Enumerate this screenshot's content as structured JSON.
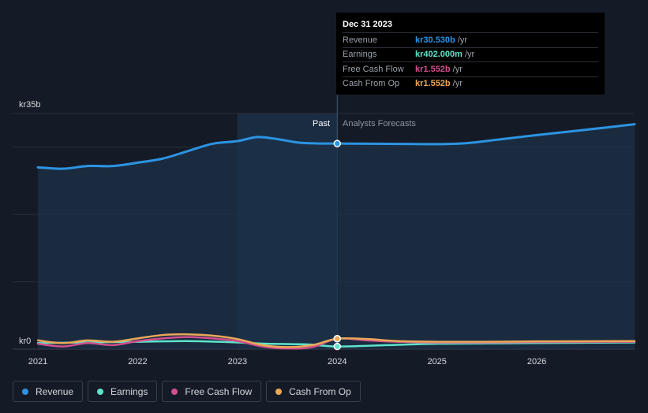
{
  "chart_data": {
    "type": "line",
    "ylabel_top": "kr35b",
    "ylabel_bottom": "kr0",
    "ylim": [
      0,
      35
    ],
    "xlim": [
      2021.0,
      2026.98
    ],
    "x_ticks": [
      "2021",
      "2022",
      "2023",
      "2024",
      "2025",
      "2026"
    ],
    "x_tick_values": [
      2021,
      2022,
      2023,
      2024,
      2025,
      2026
    ],
    "past_label": "Past",
    "forecast_label": "Analysts Forecasts",
    "past_region": [
      2023.0,
      2024.0
    ],
    "divider_x": 2024.0,
    "series": [
      {
        "name": "Revenue",
        "color": "#2c94e3",
        "points": [
          [
            2021.0,
            27.0
          ],
          [
            2021.25,
            26.8
          ],
          [
            2021.5,
            27.2
          ],
          [
            2021.75,
            27.2
          ],
          [
            2022.0,
            27.7
          ],
          [
            2022.25,
            28.3
          ],
          [
            2022.5,
            29.4
          ],
          [
            2022.75,
            30.5
          ],
          [
            2023.0,
            30.9
          ],
          [
            2023.2,
            31.5
          ],
          [
            2023.4,
            31.2
          ],
          [
            2023.6,
            30.7
          ],
          [
            2023.8,
            30.55
          ],
          [
            2024.0,
            30.53
          ],
          [
            2024.5,
            30.5
          ],
          [
            2025.0,
            30.45
          ],
          [
            2025.3,
            30.6
          ],
          [
            2025.6,
            31.1
          ],
          [
            2026.0,
            31.8
          ],
          [
            2026.5,
            32.6
          ],
          [
            2026.98,
            33.4
          ]
        ]
      },
      {
        "name": "Earnings",
        "color": "#5ee3c9",
        "points": [
          [
            2021.0,
            0.9
          ],
          [
            2021.5,
            1.0
          ],
          [
            2022.0,
            1.1
          ],
          [
            2022.5,
            1.2
          ],
          [
            2023.0,
            1.0
          ],
          [
            2023.3,
            0.8
          ],
          [
            2023.7,
            0.7
          ],
          [
            2024.0,
            0.402
          ],
          [
            2024.5,
            0.6
          ],
          [
            2025.0,
            0.8
          ],
          [
            2025.5,
            0.85
          ],
          [
            2026.0,
            0.9
          ],
          [
            2026.98,
            1.0
          ]
        ]
      },
      {
        "name": "Free Cash Flow",
        "color": "#d14f8e",
        "points": [
          [
            2021.0,
            0.8
          ],
          [
            2021.25,
            0.4
          ],
          [
            2021.5,
            0.9
          ],
          [
            2021.75,
            0.6
          ],
          [
            2022.0,
            1.2
          ],
          [
            2022.25,
            1.6
          ],
          [
            2022.5,
            1.8
          ],
          [
            2022.75,
            1.6
          ],
          [
            2023.0,
            1.2
          ],
          [
            2023.25,
            0.4
          ],
          [
            2023.5,
            0.1
          ],
          [
            2023.75,
            0.3
          ],
          [
            2024.0,
            1.552
          ],
          [
            2024.3,
            1.3
          ],
          [
            2024.6,
            1.1
          ],
          [
            2025.0,
            1.0
          ],
          [
            2025.5,
            1.0
          ],
          [
            2026.0,
            1.05
          ],
          [
            2026.98,
            1.1
          ]
        ]
      },
      {
        "name": "Cash From Op",
        "color": "#eaa857",
        "points": [
          [
            2021.0,
            1.3
          ],
          [
            2021.25,
            0.9
          ],
          [
            2021.5,
            1.3
          ],
          [
            2021.75,
            1.1
          ],
          [
            2022.0,
            1.6
          ],
          [
            2022.25,
            2.1
          ],
          [
            2022.5,
            2.2
          ],
          [
            2022.75,
            2.0
          ],
          [
            2023.0,
            1.5
          ],
          [
            2023.25,
            0.6
          ],
          [
            2023.5,
            0.3
          ],
          [
            2023.75,
            0.6
          ],
          [
            2024.0,
            1.552
          ],
          [
            2024.3,
            1.5
          ],
          [
            2024.6,
            1.2
          ],
          [
            2025.0,
            1.1
          ],
          [
            2025.5,
            1.1
          ],
          [
            2026.0,
            1.15
          ],
          [
            2026.98,
            1.2
          ]
        ]
      }
    ],
    "tooltip": {
      "date": "Dec 31 2023",
      "rows": [
        {
          "label": "Revenue",
          "value": "kr30.530b",
          "unit": "/yr",
          "color": "#2c94e3"
        },
        {
          "label": "Earnings",
          "value": "kr402.000m",
          "unit": "/yr",
          "color": "#5ee3c9"
        },
        {
          "label": "Free Cash Flow",
          "value": "kr1.552b",
          "unit": "/yr",
          "color": "#d14f8e"
        },
        {
          "label": "Cash From Op",
          "value": "kr1.552b",
          "unit": "/yr",
          "color": "#eaa857"
        }
      ]
    },
    "legend": [
      {
        "label": "Revenue",
        "color": "#2c94e3"
      },
      {
        "label": "Earnings",
        "color": "#5ee3c9"
      },
      {
        "label": "Free Cash Flow",
        "color": "#d14f8e"
      },
      {
        "label": "Cash From Op",
        "color": "#eaa857"
      }
    ]
  }
}
